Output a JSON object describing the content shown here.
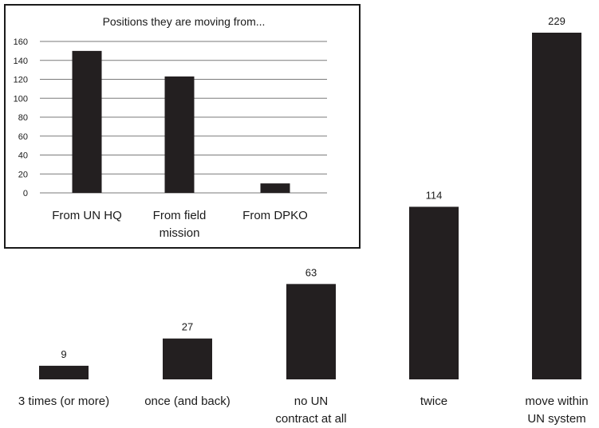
{
  "chart_data": [
    {
      "type": "bar",
      "title": "",
      "xlabel": "",
      "ylabel": "",
      "categories": [
        [
          "3 times (or more)"
        ],
        [
          "once (and back)"
        ],
        [
          "no UN",
          "contract at all"
        ],
        [
          "twice"
        ],
        [
          "move within",
          "UN system"
        ]
      ],
      "values": [
        9,
        27,
        63,
        114,
        229
      ],
      "data_labels": [
        "9",
        "27",
        "63",
        "114",
        "229"
      ],
      "ylim": [
        0,
        229
      ],
      "grid": false,
      "bar_color": "#231f20"
    },
    {
      "type": "bar",
      "title": "Positions they are moving from...",
      "xlabel": "",
      "ylabel": "",
      "categories": [
        [
          "From UN HQ"
        ],
        [
          "From field",
          "mission"
        ],
        [
          "From DPKO"
        ]
      ],
      "values": [
        150,
        123,
        10
      ],
      "ylim": [
        0,
        160
      ],
      "yticks": [
        0,
        20,
        40,
        60,
        80,
        100,
        120,
        140,
        160
      ],
      "grid": true,
      "bar_color": "#231f20"
    }
  ]
}
